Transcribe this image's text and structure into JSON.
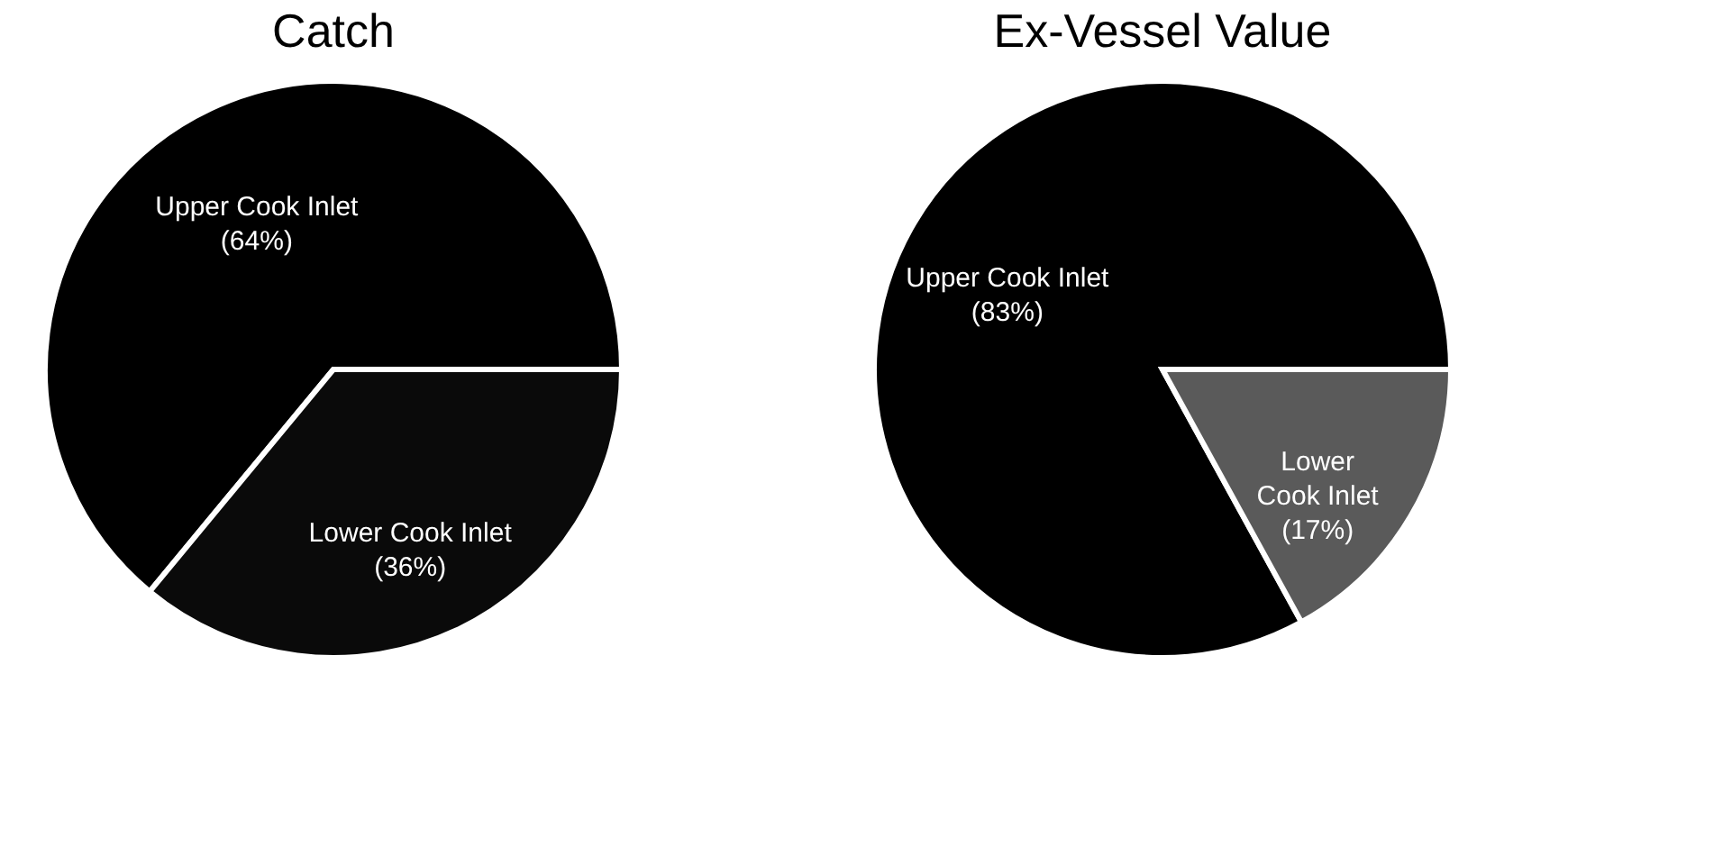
{
  "chart_data": [
    {
      "type": "pie",
      "title": "Catch",
      "categories": [
        "Upper Cook Inlet",
        "Lower Cook Inlet"
      ],
      "values": [
        64,
        36
      ],
      "colors": [
        "#000000",
        "#0a0a0a"
      ],
      "value_labels": [
        "(64%)",
        "(36%)"
      ],
      "legend": false
    },
    {
      "type": "pie",
      "title": "Ex-Vessel Value",
      "categories": [
        "Upper Cook Inlet",
        "Lower Cook Inlet"
      ],
      "values": [
        83,
        17
      ],
      "colors": [
        "#000000",
        "#5a5a5a"
      ],
      "value_labels": [
        "(83%)",
        "(17%)"
      ],
      "legend": false
    }
  ]
}
